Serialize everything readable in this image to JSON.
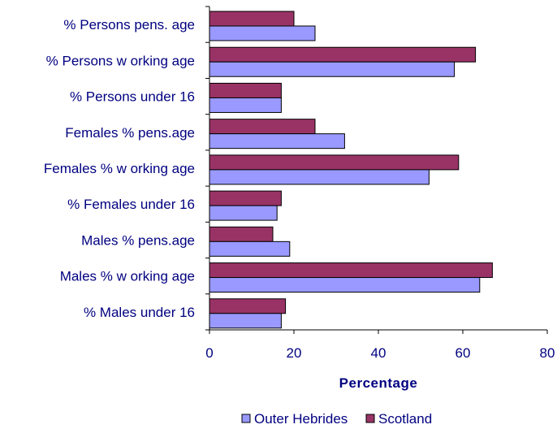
{
  "chart_data": {
    "type": "bar",
    "orientation": "horizontal",
    "categories": [
      "% Persons pens. age",
      "% Persons w orking age",
      "% Persons under 16",
      "Females % pens.age",
      "Females % w orking age",
      "% Females under 16",
      "Males % pens.age",
      "Males % w orking age",
      "% Males under 16"
    ],
    "series": [
      {
        "name": "Scotland",
        "color": "#993366",
        "values": [
          20,
          63,
          17,
          25,
          59,
          17,
          15,
          67,
          18
        ]
      },
      {
        "name": "Outer Hebrides",
        "color": "#9999FF",
        "values": [
          25,
          58,
          17,
          32,
          52,
          16,
          19,
          64,
          17
        ]
      }
    ],
    "xlabel": "Percentage",
    "ylabel": "",
    "xlim": [
      0,
      80
    ],
    "xticks": [
      0,
      20,
      40,
      60,
      80
    ],
    "grid": false,
    "legend": {
      "position": "bottom",
      "entries": [
        "Outer Hebrides",
        "Scotland"
      ]
    }
  }
}
